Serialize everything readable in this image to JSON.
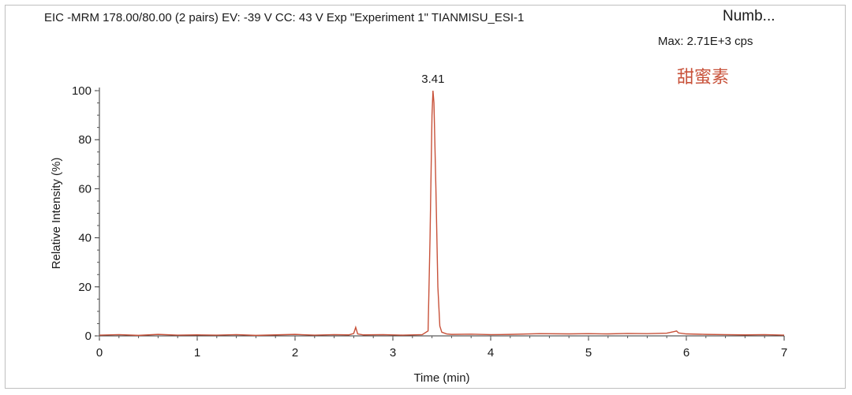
{
  "header": {
    "title": "EIC -MRM 178.00/80.00 (2 pairs) EV: -39 V CC: 43 V Exp \"Experiment 1\" TIANMISU_ESI-1",
    "title_truncated": "Numb...",
    "max_label": "Max: 2.71E+3 cps",
    "compound_label": "甜蜜素"
  },
  "chart_data": {
    "type": "line",
    "xlabel": "Time (min)",
    "ylabel": "Relative Intensity (%)",
    "xlim": [
      0,
      7
    ],
    "ylim": [
      0,
      100
    ],
    "xticks": [
      0,
      1,
      2,
      3,
      4,
      5,
      6,
      7
    ],
    "yticks": [
      0,
      20,
      40,
      60,
      80,
      100
    ],
    "line_color": "#c8523a",
    "peak_annotation": {
      "x": 3.41,
      "y": 100,
      "label": "3.41"
    },
    "series": [
      {
        "x": [
          0.0,
          0.2,
          0.4,
          0.6,
          0.8,
          1.0,
          1.2,
          1.4,
          1.6,
          1.8,
          2.0,
          2.2,
          2.4,
          2.55,
          2.6,
          2.62,
          2.64,
          2.7,
          2.9,
          3.1,
          3.3,
          3.36,
          3.38,
          3.4,
          3.41,
          3.42,
          3.44,
          3.46,
          3.48,
          3.5,
          3.55,
          3.6,
          3.8,
          4.0,
          4.2,
          4.5,
          4.8,
          5.0,
          5.2,
          5.4,
          5.6,
          5.8,
          5.88,
          5.9,
          5.92,
          6.0,
          6.2,
          6.4,
          6.6,
          6.8,
          7.0
        ],
        "y": [
          0.3,
          0.5,
          0.2,
          0.6,
          0.3,
          0.4,
          0.3,
          0.5,
          0.2,
          0.4,
          0.6,
          0.3,
          0.5,
          0.4,
          1.0,
          3.5,
          0.8,
          0.4,
          0.5,
          0.3,
          0.5,
          2.0,
          40,
          90,
          100,
          95,
          60,
          20,
          4,
          1.5,
          0.8,
          0.6,
          0.7,
          0.5,
          0.6,
          0.9,
          0.8,
          0.9,
          0.8,
          1.0,
          0.9,
          1.1,
          1.8,
          2.0,
          1.2,
          0.8,
          0.6,
          0.5,
          0.4,
          0.5,
          0.3
        ]
      }
    ]
  }
}
